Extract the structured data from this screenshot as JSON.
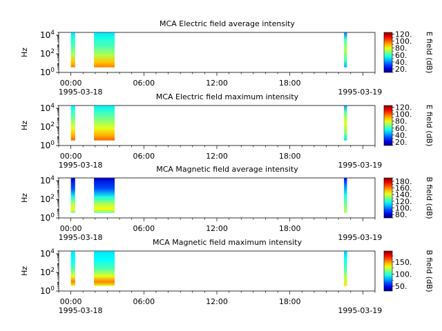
{
  "chart_data": [
    {
      "type": "heatmap",
      "title": "MCA  Electric field average intensity",
      "ylabel": "Hz",
      "y_scale": "log",
      "ylim": [
        1,
        20000
      ],
      "y_tick_labels": [
        "10^0",
        "10^2",
        "10^4"
      ],
      "x_tick_labels": [
        "00:00",
        "06:00",
        "12:00",
        "18:00",
        ""
      ],
      "x_date_start": "1995-03-18",
      "x_date_end": "1995-03-19",
      "xlim_hours": [
        -1,
        25
      ],
      "colorbar": {
        "label": "E field (dB)",
        "ticks": [
          20,
          40,
          60,
          80,
          100,
          120
        ],
        "range": [
          10,
          125
        ]
      },
      "data_blocks": [
        {
          "start_hour": 0.0,
          "end_hour": 0.35,
          "style": "e_avg"
        },
        {
          "start_hour": 1.9,
          "end_hour": 3.6,
          "style": "e_avg"
        },
        {
          "start_hour": 22.45,
          "end_hour": 22.7,
          "style": "e_avg_end"
        }
      ]
    },
    {
      "type": "heatmap",
      "title": "MCA  Electric field maximum intensity",
      "ylabel": "Hz",
      "y_scale": "log",
      "ylim": [
        1,
        20000
      ],
      "y_tick_labels": [
        "10^0",
        "10^2",
        "10^4"
      ],
      "x_tick_labels": [
        "00:00",
        "06:00",
        "12:00",
        "18:00",
        ""
      ],
      "x_date_start": "1995-03-18",
      "x_date_end": "1995-03-19",
      "xlim_hours": [
        -1,
        25
      ],
      "colorbar": {
        "label": "E field (dB)",
        "ticks": [
          20,
          40,
          60,
          80,
          100,
          120
        ],
        "range": [
          10,
          125
        ]
      },
      "data_blocks": [
        {
          "start_hour": 0.0,
          "end_hour": 0.35,
          "style": "e_max"
        },
        {
          "start_hour": 1.9,
          "end_hour": 3.6,
          "style": "e_max"
        },
        {
          "start_hour": 22.45,
          "end_hour": 22.7,
          "style": "e_max_end"
        }
      ]
    },
    {
      "type": "heatmap",
      "title": "MCA  Magnetic field average intensity",
      "ylabel": "Hz",
      "y_scale": "log",
      "ylim": [
        1,
        20000
      ],
      "y_tick_labels": [
        "10^0",
        "10^2",
        "10^4"
      ],
      "x_tick_labels": [
        "00:00",
        "06:00",
        "12:00",
        "18:00",
        ""
      ],
      "x_date_start": "1995-03-18",
      "x_date_end": "1995-03-19",
      "xlim_hours": [
        -1,
        25
      ],
      "colorbar": {
        "label": "B field (dB)",
        "ticks": [
          80,
          100,
          120,
          140,
          160,
          180
        ],
        "range": [
          70,
          190
        ]
      },
      "data_blocks": [
        {
          "start_hour": 0.0,
          "end_hour": 0.35,
          "style": "b_avg"
        },
        {
          "start_hour": 1.9,
          "end_hour": 3.6,
          "style": "b_avg"
        },
        {
          "start_hour": 22.45,
          "end_hour": 22.7,
          "style": "b_avg_end"
        }
      ]
    },
    {
      "type": "heatmap",
      "title": "MCA  Magnetic field maximum intensity",
      "ylabel": "Hz",
      "y_scale": "log",
      "ylim": [
        1,
        20000
      ],
      "y_tick_labels": [
        "10^0",
        "10^2",
        "10^4"
      ],
      "x_tick_labels": [
        "00:00",
        "06:00",
        "12:00",
        "18:00",
        ""
      ],
      "x_date_start": "1995-03-18",
      "x_date_end": "1995-03-19",
      "xlim_hours": [
        -1,
        25
      ],
      "colorbar": {
        "label": "B field (dB)",
        "ticks": [
          50,
          100,
          150
        ],
        "tick_labels": [
          "50.",
          "100.",
          "150."
        ],
        "range": [
          30,
          195
        ]
      },
      "data_blocks": [
        {
          "start_hour": 0.0,
          "end_hour": 0.35,
          "style": "b_max"
        },
        {
          "start_hour": 1.9,
          "end_hour": 3.6,
          "style": "b_max"
        },
        {
          "start_hour": 22.45,
          "end_hour": 22.7,
          "style": "b_max_end"
        }
      ]
    }
  ]
}
